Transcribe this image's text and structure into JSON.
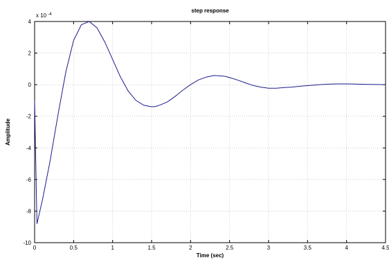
{
  "chart_data": {
    "type": "line",
    "title": "step response",
    "xlabel": "Time (sec)",
    "ylabel": "Amplitude",
    "exponent_label": "x 10",
    "exponent_power": "-4",
    "xlim": [
      0,
      4.5
    ],
    "ylim": [
      -10,
      4
    ],
    "x_ticks": [
      "0",
      "0.5",
      "1",
      "1.5",
      "2",
      "2.5",
      "3",
      "3.5",
      "4",
      "4.5"
    ],
    "y_ticks": [
      "4",
      "2",
      "0",
      "-2",
      "-4",
      "-6",
      "-8",
      "-10"
    ],
    "grid": true,
    "line_color": "#1a1a8c",
    "series": [
      {
        "x": [
          0,
          0.03,
          0.1,
          0.2,
          0.3,
          0.4,
          0.5,
          0.6,
          0.7,
          0.8,
          0.9,
          1.0,
          1.1,
          1.2,
          1.3,
          1.4,
          1.5,
          1.55,
          1.6,
          1.7,
          1.8,
          1.9,
          2.0,
          2.1,
          2.2,
          2.3,
          2.4,
          2.45,
          2.5,
          2.6,
          2.7,
          2.8,
          2.9,
          3.0,
          3.1,
          3.2,
          3.3,
          3.4,
          3.5,
          3.6,
          3.7,
          3.8,
          3.9,
          4.0,
          4.1,
          4.2,
          4.3,
          4.4,
          4.5
        ],
        "values": [
          -1.0,
          -8.8,
          -7.3,
          -4.8,
          -1.9,
          0.8,
          2.8,
          3.8,
          4.0,
          3.6,
          2.7,
          1.6,
          0.5,
          -0.4,
          -1.0,
          -1.3,
          -1.4,
          -1.38,
          -1.3,
          -1.1,
          -0.75,
          -0.35,
          0.0,
          0.3,
          0.48,
          0.58,
          0.55,
          0.52,
          0.45,
          0.3,
          0.12,
          -0.05,
          -0.15,
          -0.22,
          -0.22,
          -0.18,
          -0.15,
          -0.1,
          -0.06,
          -0.02,
          0.02,
          0.04,
          0.05,
          0.05,
          0.04,
          0.03,
          0.02,
          0.01,
          0.0
        ]
      }
    ]
  }
}
